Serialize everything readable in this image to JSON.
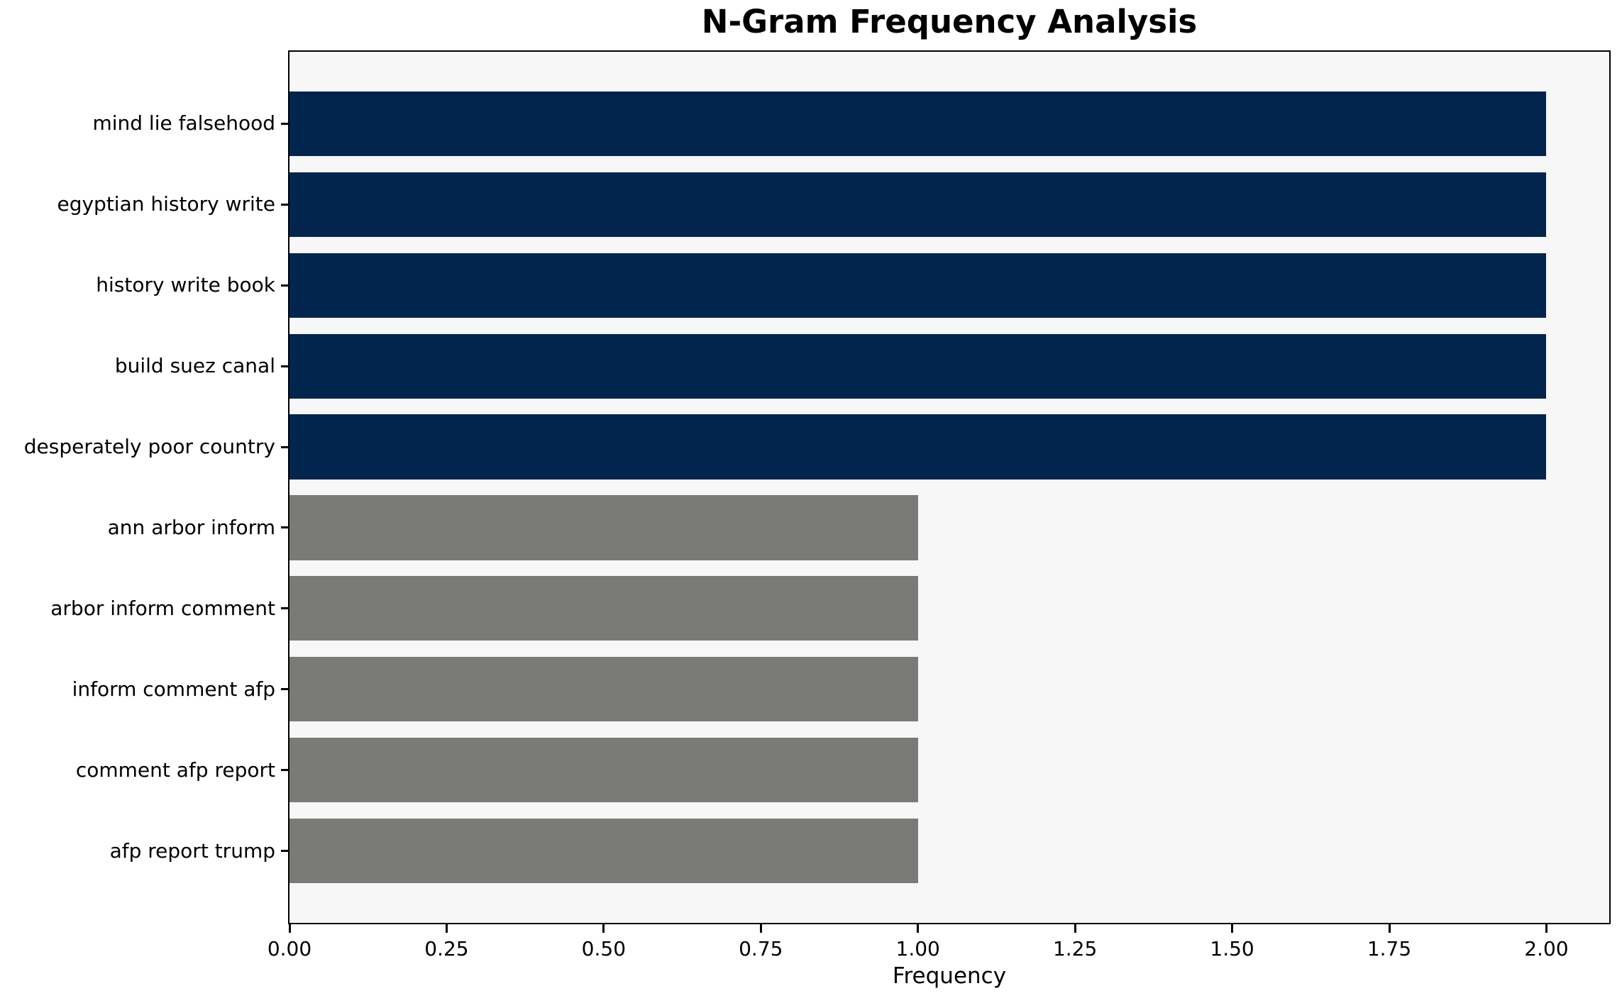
{
  "chart_data": {
    "type": "bar",
    "orientation": "horizontal",
    "title": "N-Gram Frequency Analysis",
    "xlabel": "Frequency",
    "ylabel": "",
    "categories": [
      "mind lie falsehood",
      "egyptian history write",
      "history write book",
      "build suez canal",
      "desperately poor country",
      "ann arbor inform",
      "arbor inform comment",
      "inform comment afp",
      "comment afp report",
      "afp report trump"
    ],
    "values": [
      2,
      2,
      2,
      2,
      2,
      1,
      1,
      1,
      1,
      1
    ],
    "bar_colors": [
      "#02254e",
      "#02254e",
      "#02254e",
      "#02254e",
      "#02254e",
      "#7a7a78",
      "#7a7a78",
      "#7a7a78",
      "#7a7a78",
      "#7a7a78"
    ],
    "xlim": [
      0,
      2.1
    ],
    "xticks": [
      "0.00",
      "0.25",
      "0.50",
      "0.75",
      "1.00",
      "1.25",
      "1.50",
      "1.75",
      "2.00"
    ],
    "xtick_values": [
      0,
      0.25,
      0.5,
      0.75,
      1.0,
      1.25,
      1.5,
      1.75,
      2.0
    ],
    "grid": false,
    "legend": null,
    "plot_background": "#f7f7f7",
    "figure_background": "#ffffff",
    "spine_color": "#000000",
    "bar_height_fraction": 0.8
  }
}
